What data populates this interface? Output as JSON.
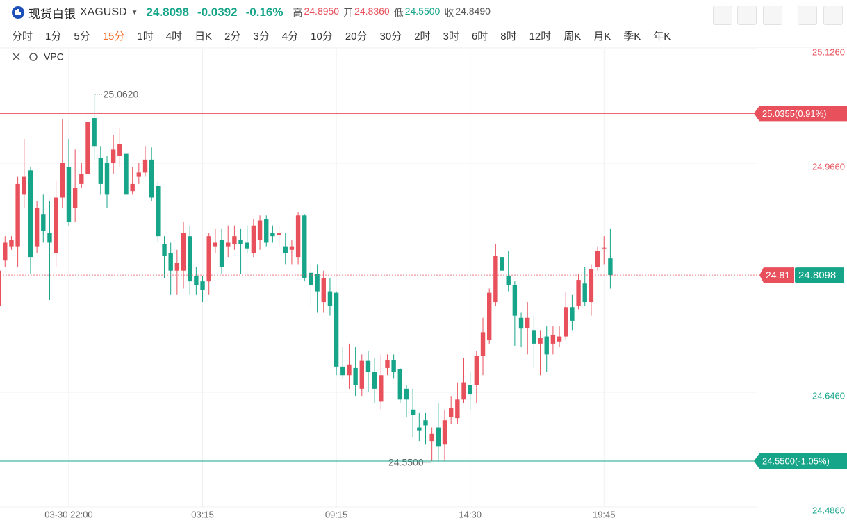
{
  "header": {
    "name": "现货白银",
    "symbol": "XAGUSD",
    "price": "24.8098",
    "change": "-0.0392",
    "change_pct": "-0.16%",
    "price_color": "#16a589",
    "stats": [
      {
        "label": "高",
        "value": "24.8950",
        "color": "#e8505b"
      },
      {
        "label": "开",
        "value": "24.8360",
        "color": "#e8505b"
      },
      {
        "label": "低",
        "value": "24.5500",
        "color": "#16a589"
      },
      {
        "label": "收",
        "value": "24.8490",
        "color": "#555555"
      }
    ]
  },
  "tabs": [
    "分时",
    "1分",
    "5分",
    "15分",
    "1时",
    "4时",
    "日K",
    "2分",
    "3分",
    "4分",
    "10分",
    "20分",
    "30分",
    "2时",
    "3时",
    "6时",
    "8时",
    "12时",
    "周K",
    "月K",
    "季K",
    "年K"
  ],
  "active_tab": "15分",
  "indicator": "VPC",
  "chart_data": {
    "type": "candlestick",
    "up_color": "#e8505b",
    "down_color": "#16a589",
    "grid": true,
    "categories": [
      null,
      null,
      null,
      null,
      null,
      null,
      null,
      null,
      null,
      null,
      null,
      "03-30 22:00",
      null,
      null,
      null,
      null,
      null,
      null,
      null,
      null,
      null,
      null,
      null,
      null,
      null,
      null,
      null,
      null,
      null,
      null,
      null,
      null,
      "03:15",
      null,
      null,
      null,
      null,
      null,
      null,
      null,
      null,
      null,
      null,
      null,
      null,
      null,
      null,
      null,
      null,
      null,
      null,
      null,
      null,
      "09:15",
      null,
      null,
      null,
      null,
      null,
      null,
      null,
      null,
      null,
      null,
      null,
      null,
      null,
      null,
      null,
      null,
      null,
      null,
      null,
      null,
      "14:30",
      null,
      null,
      null,
      null,
      null,
      null,
      null,
      null,
      null,
      null,
      null,
      null,
      null,
      null,
      null,
      null,
      null,
      null,
      null,
      null,
      "19:45",
      null
    ],
    "open": [
      24.767,
      24.83,
      24.85,
      24.85,
      24.922,
      24.956,
      24.85,
      24.895,
      24.869,
      24.84,
      24.918,
      24.961,
      24.903,
      24.937,
      24.951,
      25.029,
      24.973,
      24.966,
      24.966,
      24.976,
      24.979,
      24.927,
      24.947,
      24.953,
      24.971,
      24.934,
      24.853,
      24.84,
      24.816,
      24.816,
      24.864,
      24.808,
      24.801,
      24.801,
      24.85,
      24.859,
      24.85,
      24.853,
      24.859,
      24.855,
      24.84,
      24.859,
      24.888,
      24.869,
      24.866,
      24.85,
      24.845,
      24.835,
      24.893,
      24.813,
      24.811,
      24.772,
      24.787,
      24.785,
      24.682,
      24.67,
      24.68,
      24.651,
      24.69,
      24.675,
      24.633,
      24.68,
      24.691,
      24.678,
      24.651,
      24.622,
      24.597,
      24.607,
      24.578,
      24.597,
      24.573,
      24.612,
      24.61,
      24.636,
      24.656,
      24.656,
      24.697,
      24.719,
      24.772,
      24.835,
      24.809,
      24.796,
      24.75,
      24.736,
      24.733,
      24.714,
      24.724,
      24.714,
      24.717,
      24.724,
      24.765,
      24.767,
      24.798,
      24.772,
      24.821,
      24.847,
      24.833
    ],
    "high": [
      24.821,
      24.864,
      24.864,
      24.947,
      25.0,
      24.961,
      24.913,
      24.922,
      24.913,
      24.942,
      25.027,
      25.0,
      24.985,
      24.966,
      25.044,
      25.062,
      24.99,
      24.976,
      25.005,
      25.015,
      24.981,
      24.961,
      24.966,
      24.99,
      24.988,
      24.94,
      24.864,
      24.855,
      24.845,
      24.884,
      24.879,
      24.821,
      24.808,
      24.869,
      24.874,
      24.874,
      24.879,
      24.879,
      24.874,
      24.879,
      24.888,
      24.893,
      24.893,
      24.879,
      24.879,
      24.869,
      24.859,
      24.898,
      24.895,
      24.825,
      24.825,
      24.816,
      24.806,
      24.787,
      24.709,
      24.714,
      24.709,
      24.699,
      24.704,
      24.694,
      24.699,
      24.699,
      24.699,
      24.68,
      24.656,
      24.651,
      24.617,
      24.617,
      24.597,
      24.631,
      24.622,
      24.641,
      24.66,
      24.694,
      24.675,
      24.704,
      24.75,
      24.791,
      24.853,
      24.84,
      24.843,
      24.801,
      24.758,
      24.772,
      24.753,
      24.733,
      24.738,
      24.738,
      24.738,
      24.787,
      24.782,
      24.811,
      24.821,
      24.825,
      24.85,
      24.864,
      24.874
    ],
    "low": [
      24.762,
      24.821,
      24.845,
      24.821,
      24.903,
      24.811,
      24.84,
      24.855,
      24.775,
      24.821,
      24.903,
      24.879,
      24.884,
      24.932,
      24.947,
      24.971,
      24.922,
      24.903,
      24.951,
      24.961,
      24.918,
      24.922,
      24.937,
      24.947,
      24.913,
      24.855,
      24.806,
      24.782,
      24.782,
      24.791,
      24.782,
      24.782,
      24.772,
      24.782,
      24.84,
      24.811,
      24.835,
      24.845,
      24.811,
      24.84,
      24.835,
      24.845,
      24.85,
      24.855,
      24.85,
      24.825,
      24.825,
      24.825,
      24.801,
      24.767,
      24.758,
      24.758,
      24.753,
      24.67,
      24.665,
      24.651,
      24.641,
      24.641,
      24.646,
      24.631,
      24.622,
      24.67,
      24.665,
      24.631,
      24.612,
      24.583,
      24.578,
      24.573,
      24.55,
      24.55,
      24.55,
      24.602,
      24.602,
      24.631,
      24.622,
      24.631,
      24.67,
      24.714,
      24.767,
      24.787,
      24.787,
      24.711,
      24.709,
      24.699,
      24.68,
      24.67,
      24.675,
      24.699,
      24.709,
      24.719,
      24.733,
      24.762,
      24.767,
      24.753,
      24.816,
      24.825,
      24.791
    ],
    "close": [
      24.816,
      24.855,
      24.859,
      24.937,
      24.947,
      24.835,
      24.903,
      24.871,
      24.855,
      24.918,
      24.966,
      24.884,
      24.932,
      24.951,
      25.024,
      24.99,
      24.937,
      24.922,
      24.985,
      24.993,
      24.922,
      24.937,
      24.953,
      24.971,
      24.918,
      24.864,
      24.837,
      24.816,
      24.827,
      24.869,
      24.801,
      24.796,
      24.789,
      24.864,
      24.855,
      24.821,
      24.855,
      24.864,
      24.853,
      24.847,
      24.879,
      24.886,
      24.855,
      24.864,
      24.868,
      24.84,
      24.85,
      24.893,
      24.806,
      24.796,
      24.787,
      24.806,
      24.767,
      24.682,
      24.67,
      24.685,
      24.656,
      24.69,
      24.675,
      24.651,
      24.67,
      24.691,
      24.675,
      24.636,
      24.636,
      24.614,
      24.593,
      24.6,
      24.588,
      24.571,
      24.607,
      24.624,
      24.636,
      24.66,
      24.643,
      24.697,
      24.73,
      24.785,
      24.837,
      24.816,
      24.796,
      24.753,
      24.735,
      24.75,
      24.714,
      24.722,
      24.699,
      24.726,
      24.724,
      24.765,
      24.746,
      24.803,
      24.772,
      24.818,
      24.843,
      24.848,
      24.8098
    ],
    "ylim": [
      24.486,
      25.126
    ],
    "yticks": [
      {
        "value": 25.126,
        "label": "25.1260"
      },
      {
        "value": 24.966,
        "label": "24.9660"
      },
      {
        "value": 24.646,
        "label": "24.6460"
      },
      {
        "value": 24.486,
        "label": "24.4860"
      }
    ],
    "high_label": {
      "value": 25.062,
      "label": "25.0620"
    },
    "low_label": {
      "value": 24.55,
      "label": "24.5500"
    },
    "levels": [
      {
        "value": 25.0355,
        "label": "25.0355(0.91%)",
        "color": "#e8505b"
      },
      {
        "value": 24.55,
        "label": "24.5500(-1.05%)",
        "color": "#16a589"
      }
    ],
    "last_price": {
      "value": 24.8098,
      "label": "24.8098",
      "tag": "24.81"
    }
  }
}
